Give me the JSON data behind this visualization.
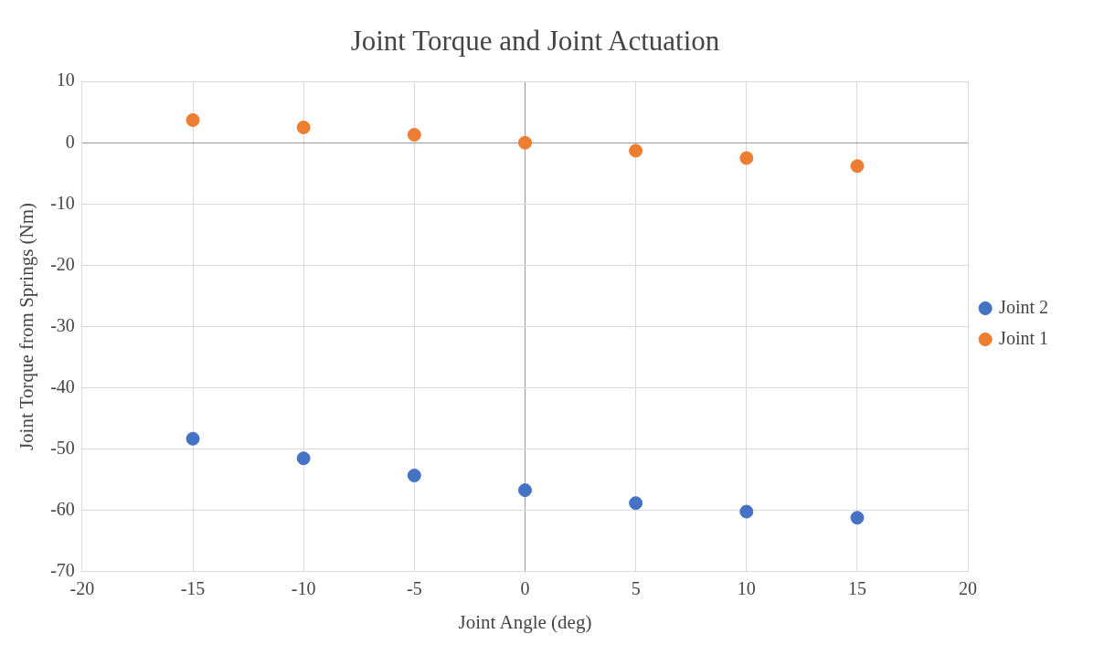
{
  "chart_data": {
    "type": "scatter",
    "title": "Joint Torque and Joint Actuation",
    "xlabel": "Joint Angle (deg)",
    "ylabel": "Joint Torque from Springs (Nm)",
    "x": [
      -15,
      -10,
      -5,
      0,
      5,
      10,
      15
    ],
    "series": [
      {
        "name": "Joint 2",
        "color": "#4472c4",
        "values": [
          -48.3,
          -51.5,
          -54.3,
          -56.7,
          -58.8,
          -60.2,
          -61.2
        ]
      },
      {
        "name": "Joint 1",
        "color": "#ed7d31",
        "values": [
          3.7,
          2.5,
          1.3,
          0,
          -1.3,
          -2.5,
          -3.8
        ]
      }
    ],
    "xlim": [
      -20,
      20
    ],
    "xticks": [
      -20,
      -15,
      -10,
      -5,
      0,
      5,
      10,
      15,
      20
    ],
    "ylim": [
      -70,
      10
    ],
    "yticks": [
      -70,
      -60,
      -50,
      -40,
      -30,
      -20,
      -10,
      0,
      10
    ],
    "grid": true,
    "legend": "right",
    "marker": "circle"
  }
}
